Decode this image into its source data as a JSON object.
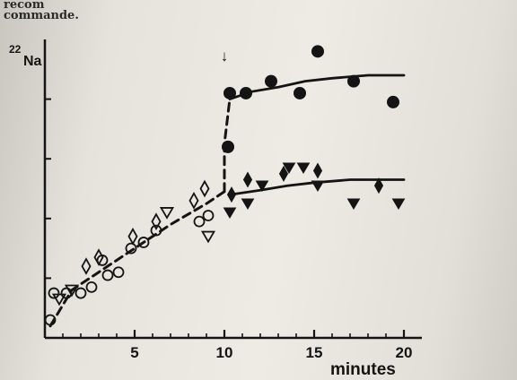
{
  "header": {
    "line1": "recom",
    "line2": "commande."
  },
  "chart_data": {
    "type": "scatter",
    "title": "",
    "xlabel": "minutes",
    "ylabel_sup": "22",
    "ylabel_main": "Na",
    "xlim": [
      0,
      21
    ],
    "ylim": [
      0,
      10
    ],
    "xticks": [
      5,
      10,
      15,
      20
    ],
    "grid": false,
    "annotation": {
      "symbol": "↓",
      "x": 10
    },
    "series": [
      {
        "marker": "open-circle",
        "points": [
          [
            0.3,
            0.6
          ],
          [
            0.5,
            1.5
          ],
          [
            1.2,
            1.5
          ],
          [
            2.0,
            1.5
          ],
          [
            2.6,
            1.7
          ],
          [
            3.5,
            2.1
          ],
          [
            3.2,
            2.6
          ],
          [
            4.1,
            2.2
          ],
          [
            4.8,
            3.0
          ],
          [
            5.5,
            3.2
          ],
          [
            6.2,
            3.6
          ],
          [
            8.6,
            3.9
          ],
          [
            9.1,
            4.1
          ]
        ]
      },
      {
        "marker": "open-triangle-down",
        "points": [
          [
            0.8,
            1.3
          ],
          [
            1.5,
            1.6
          ],
          [
            6.8,
            4.2
          ],
          [
            9.1,
            3.4
          ]
        ]
      },
      {
        "marker": "open-diamond",
        "points": [
          [
            2.3,
            2.4
          ],
          [
            3.0,
            2.7
          ],
          [
            4.9,
            3.4
          ],
          [
            6.2,
            3.9
          ],
          [
            8.3,
            4.6
          ],
          [
            8.9,
            5.0
          ]
        ]
      },
      {
        "marker": "filled-circle",
        "points": [
          [
            10.2,
            6.4
          ],
          [
            10.3,
            8.2
          ],
          [
            11.2,
            8.2
          ],
          [
            12.6,
            8.6
          ],
          [
            14.2,
            8.2
          ],
          [
            15.2,
            9.6
          ],
          [
            17.2,
            8.6
          ],
          [
            19.4,
            7.9
          ]
        ]
      },
      {
        "marker": "filled-triangle-down",
        "points": [
          [
            10.3,
            4.2
          ],
          [
            11.3,
            4.5
          ],
          [
            12.1,
            5.1
          ],
          [
            13.6,
            5.7
          ],
          [
            14.4,
            5.7
          ],
          [
            15.2,
            5.1
          ],
          [
            17.2,
            4.5
          ],
          [
            19.7,
            4.5
          ]
        ]
      },
      {
        "marker": "filled-diamond",
        "points": [
          [
            10.4,
            4.8
          ],
          [
            11.3,
            5.3
          ],
          [
            13.3,
            5.5
          ],
          [
            15.2,
            5.6
          ],
          [
            18.6,
            5.1
          ]
        ]
      }
    ],
    "fit_lines": [
      {
        "style": "dashed",
        "points": [
          [
            0.3,
            0.4
          ],
          [
            1.5,
            1.6
          ],
          [
            3,
            2.2
          ],
          [
            5,
            3.0
          ],
          [
            7,
            3.8
          ],
          [
            9.0,
            4.5
          ],
          [
            10.0,
            4.9
          ]
        ]
      },
      {
        "style": "dashed",
        "points": [
          [
            10,
            4.9
          ],
          [
            10,
            6.5
          ],
          [
            10.3,
            8.0
          ]
        ]
      },
      {
        "style": "solid",
        "points": [
          [
            10.3,
            8.0
          ],
          [
            11.5,
            8.25
          ],
          [
            13,
            8.4
          ],
          [
            14.5,
            8.6
          ],
          [
            16,
            8.7
          ],
          [
            18,
            8.8
          ],
          [
            20,
            8.8
          ]
        ]
      },
      {
        "style": "solid",
        "points": [
          [
            10.3,
            4.8
          ],
          [
            12,
            4.95
          ],
          [
            13.5,
            5.1
          ],
          [
            15,
            5.2
          ],
          [
            17,
            5.3
          ],
          [
            20,
            5.3
          ]
        ]
      }
    ]
  }
}
